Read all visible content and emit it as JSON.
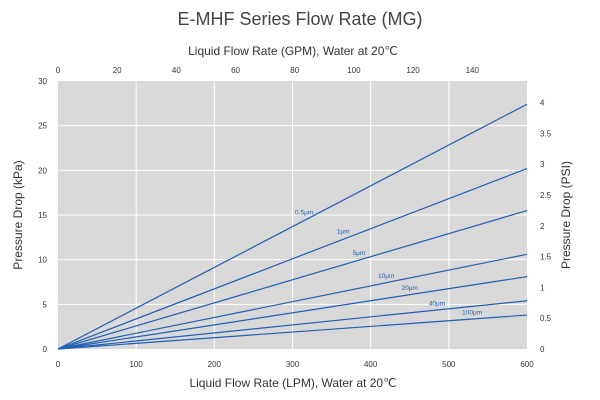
{
  "chart_data": {
    "type": "line",
    "title": "E-MHF Series Flow Rate (MG)",
    "x_bottom": {
      "label": "Liquid Flow Rate (LPM), Water at 20℃",
      "range": [
        0,
        600
      ],
      "ticks": [
        0,
        100,
        200,
        300,
        400,
        500,
        600
      ]
    },
    "x_top": {
      "label": "Liquid Flow Rate (GPM), Water at 20℃",
      "range": [
        0,
        158.5
      ],
      "ticks": [
        0,
        20,
        40,
        60,
        80,
        100,
        120,
        140
      ]
    },
    "y_left": {
      "label": "Pressure Drop (kPa)",
      "range": [
        0,
        30
      ],
      "ticks": [
        0,
        5,
        10,
        15,
        20,
        25,
        30
      ]
    },
    "y_right": {
      "label": "Pressure Drop (PSI)",
      "range": [
        0,
        4.35
      ],
      "ticks": [
        0,
        0.5,
        1,
        1.5,
        2,
        2.5,
        3,
        3.5,
        4
      ]
    },
    "grid": true,
    "colors": {
      "plot_background": "#d9d9d9",
      "grid": "#ffffff",
      "series_line": "#1f5fb5",
      "text": "#333333"
    },
    "series": [
      {
        "name": "0.5μm",
        "x": [
          0,
          600
        ],
        "y": [
          0,
          27.4
        ],
        "label_at": 320
      },
      {
        "name": "1μm",
        "x": [
          0,
          600
        ],
        "y": [
          0,
          20.2
        ],
        "label_at": 370
      },
      {
        "name": "5μm",
        "x": [
          0,
          600
        ],
        "y": [
          0,
          15.5
        ],
        "label_at": 390
      },
      {
        "name": "10μm",
        "x": [
          0,
          600
        ],
        "y": [
          0,
          10.6
        ],
        "label_at": 425
      },
      {
        "name": "20μm",
        "x": [
          0,
          600
        ],
        "y": [
          0,
          8.1
        ],
        "label_at": 455
      },
      {
        "name": "40μm",
        "x": [
          0,
          600
        ],
        "y": [
          0,
          5.4
        ],
        "label_at": 490
      },
      {
        "name": "100μm",
        "x": [
          0,
          600
        ],
        "y": [
          0,
          3.8
        ],
        "label_at": 535
      }
    ]
  }
}
